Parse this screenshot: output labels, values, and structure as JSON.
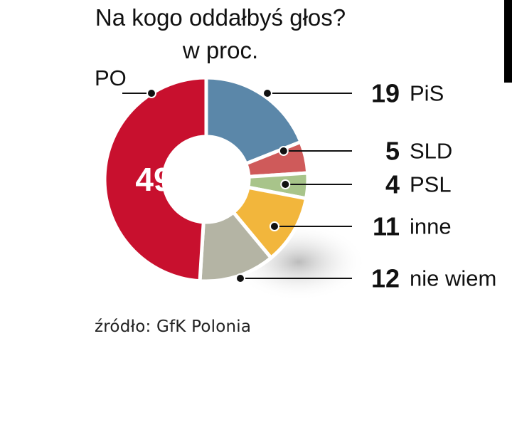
{
  "chart_data": {
    "type": "pie",
    "title": "Na kogo oddałbyś głos?",
    "subtitle": "w proc.",
    "slices": [
      {
        "label": "PiS",
        "value": 19,
        "color": "#5b87a9"
      },
      {
        "label": "SLD",
        "value": 5,
        "color": "#cf5a5a"
      },
      {
        "label": "PSL",
        "value": 4,
        "color": "#a8c48a"
      },
      {
        "label": "inne",
        "value": 11,
        "color": "#f2b63c"
      },
      {
        "label": "nie wiem",
        "value": 12,
        "color": "#b4b4a4"
      },
      {
        "label": "PO",
        "value": 49,
        "color": "#c8102e"
      }
    ],
    "source": "źródło: GfK Polonia"
  }
}
